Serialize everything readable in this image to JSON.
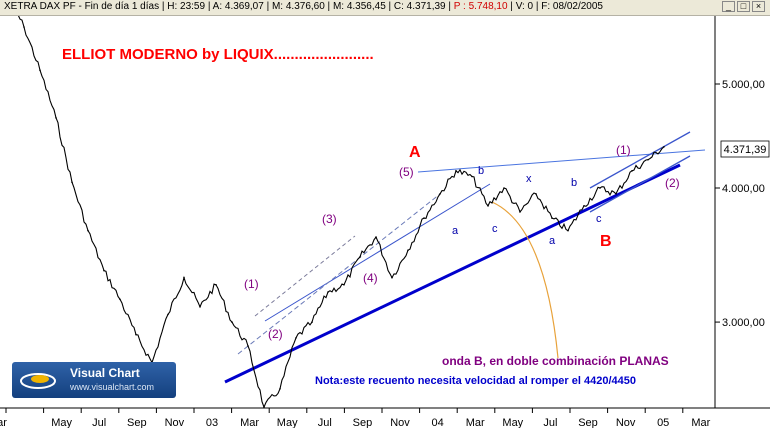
{
  "titlebar": {
    "symbol": "XETRA DAX PF",
    "interval": "Fin de día 1 días",
    "hour": "H: 23:59",
    "open": "A: 4.369,07",
    "high": "M: 4.376,60",
    "low": "M: 4.356,45",
    "close": "C: 4.371,39",
    "extra": "P : 5.748,10",
    "volume": "V: 0",
    "date": "F: 08/02/2005",
    "btn_min": "_",
    "btn_max": "□",
    "btn_close": "×"
  },
  "annotations": {
    "main_title": "ELLIOT MODERNO by LIQUIX........................",
    "note1": "onda B, en doble combinación PLANAS",
    "note2": "Nota:este recuento necesita velocidad al romper el 4420/4450",
    "wave_A": "A",
    "wave_B": "B",
    "w1_early": "(1)",
    "w2_early": "(2)",
    "w3": "(3)",
    "w4": "(4)",
    "w5": "(5)",
    "w1_late": "(1)",
    "w2_late": "(2)",
    "sub_b1": "b",
    "sub_a1": "a",
    "sub_c1": "c",
    "sub_x": "x",
    "sub_a2": "a",
    "sub_b2": "b",
    "sub_c2": "c"
  },
  "logo": {
    "brand": "Visual Chart",
    "url": "www.visualchart.com"
  },
  "colors": {
    "price": "#000000",
    "trend_main": "#0000cc",
    "channel": "#3a55cc",
    "title_red": "#ff0000",
    "wave_purple": "#800080",
    "note_blue": "#0000cc",
    "curve_orange": "#e8a23a",
    "axis_bg": "#ffffff"
  },
  "chart_data": {
    "type": "line",
    "instrument": "XETRA DAX PF",
    "y_scale": "log",
    "ylim": [
      2300,
      6500
    ],
    "y_ticks": [
      3000,
      4000,
      5000
    ],
    "y_tick_labels": [
      "3.000,00",
      "4.000,00",
      "5.000,00"
    ],
    "last_price_label": "4.371,39",
    "last_price": 4371.39,
    "x_tick_labels": [
      "ar",
      "May",
      "Jul",
      "Sep",
      "Nov",
      "03",
      "Mar",
      "May",
      "Jul",
      "Sep",
      "Nov",
      "04",
      "Mar",
      "May",
      "Jul",
      "Sep",
      "Nov",
      "05",
      "Mar"
    ],
    "grid": false,
    "series": [
      {
        "x": [
          "2002-03",
          "2002-04",
          "2002-05",
          "2002-06",
          "2002-07",
          "2002-07",
          "2002-08",
          "2002-08",
          "2002-09",
          "2002-10",
          "2002-10",
          "2002-11",
          "2002-12",
          "2003-01",
          "2003-01",
          "2003-02",
          "2003-03",
          "2003-03",
          "2003-04",
          "2003-05",
          "2003-06",
          "2003-07",
          "2003-08",
          "2003-09",
          "2003-09",
          "2003-10",
          "2003-11",
          "2003-12",
          "2004-01",
          "2004-02",
          "2004-03",
          "2004-04",
          "2004-05",
          "2004-06",
          "2004-07",
          "2004-08",
          "2004-09",
          "2004-10",
          "2004-11",
          "2004-12",
          "2005-01",
          "2005-02"
        ],
        "values": [
          6050,
          5650,
          5150,
          4650,
          4050,
          3650,
          3350,
          3150,
          2920,
          2750,
          3050,
          3300,
          3100,
          3250,
          3000,
          2850,
          2500,
          2600,
          2900,
          3000,
          3200,
          3250,
          3450,
          3600,
          3300,
          3500,
          3750,
          3950,
          4150,
          4100,
          3850,
          4000,
          3800,
          3950,
          3750,
          3650,
          3850,
          4000,
          3950,
          4150,
          4250,
          4370
        ]
      }
    ],
    "trendlines": [
      {
        "name": "B-wave lower trendline",
        "from": [
          "2003-03",
          2500
        ],
        "to": [
          "2005-02",
          4150
        ]
      },
      {
        "name": "upper channel",
        "from": [
          "2004-02",
          4180
        ],
        "to": [
          "2005-02",
          4350
        ]
      }
    ]
  }
}
